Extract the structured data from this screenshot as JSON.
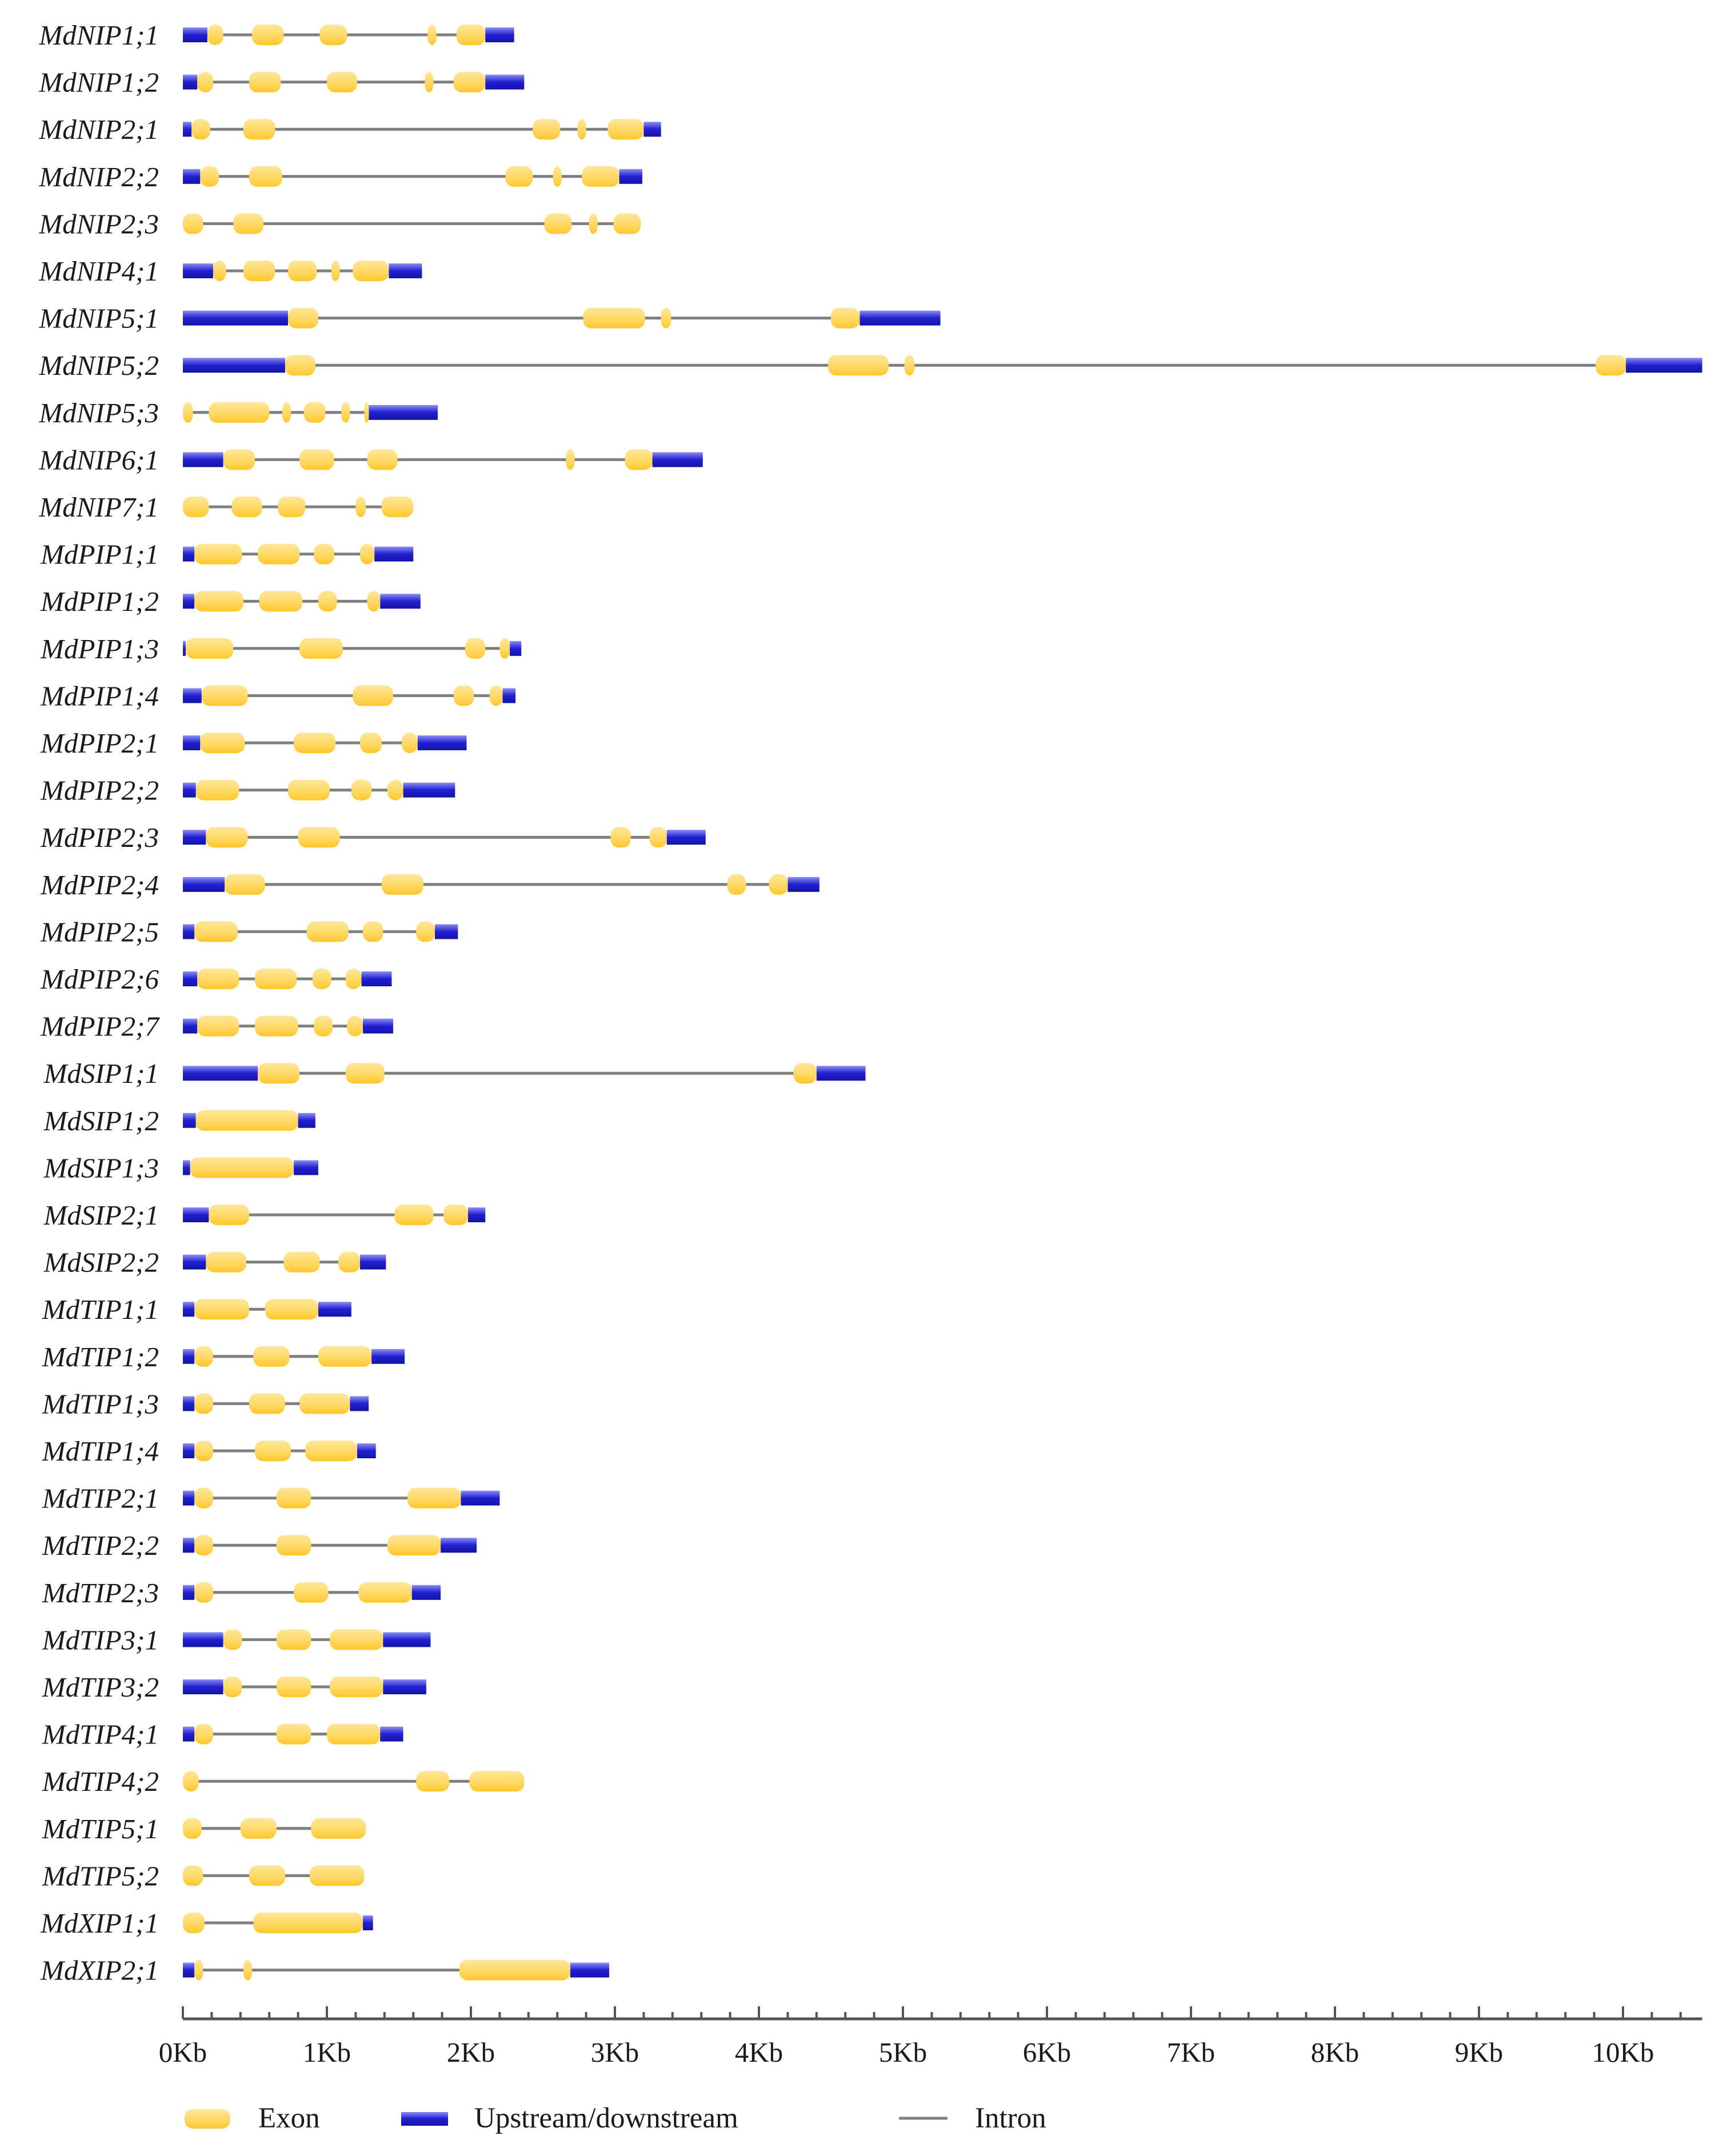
{
  "colors": {
    "exon": "#FFD966",
    "exon_edge": "#FFC000",
    "utr": "#2020D0",
    "utr_light": "#8C8CF5",
    "intron": "#7F7F7F",
    "axis": "#555555"
  },
  "chart_data": {
    "type": "gene_structure",
    "units": "Kb",
    "xlim": [
      0,
      10.55
    ],
    "ticks": [
      {
        "value": 0,
        "label": "0Kb"
      },
      {
        "value": 1,
        "label": "1Kb"
      },
      {
        "value": 2,
        "label": "2Kb"
      },
      {
        "value": 3,
        "label": "3Kb"
      },
      {
        "value": 4,
        "label": "4Kb"
      },
      {
        "value": 5,
        "label": "5Kb"
      },
      {
        "value": 6,
        "label": "6Kb"
      },
      {
        "value": 7,
        "label": "7Kb"
      },
      {
        "value": 8,
        "label": "8Kb"
      },
      {
        "value": 9,
        "label": "9Kb"
      },
      {
        "value": 10,
        "label": "10Kb"
      }
    ],
    "legend": {
      "exon": "Exon",
      "utr": "Upstream/downstream",
      "intron": "Intron"
    },
    "genes": [
      {
        "name": "MdNIP1;1",
        "length": 2.3,
        "utr": [
          [
            0,
            0.17
          ],
          [
            2.1,
            2.3
          ]
        ],
        "exons": [
          [
            0.17,
            0.28
          ],
          [
            0.48,
            0.7
          ],
          [
            0.95,
            1.14
          ],
          [
            1.7,
            1.76
          ],
          [
            1.9,
            2.1
          ]
        ]
      },
      {
        "name": "MdNIP1;2",
        "length": 2.37,
        "utr": [
          [
            0,
            0.1
          ],
          [
            2.1,
            2.37
          ]
        ],
        "exons": [
          [
            0.1,
            0.21
          ],
          [
            0.46,
            0.68
          ],
          [
            1.0,
            1.21
          ],
          [
            1.68,
            1.74
          ],
          [
            1.88,
            2.1
          ]
        ]
      },
      {
        "name": "MdNIP2;1",
        "length": 3.32,
        "utr": [
          [
            0,
            0.06
          ],
          [
            3.2,
            3.32
          ]
        ],
        "exons": [
          [
            0.06,
            0.19
          ],
          [
            0.42,
            0.64
          ],
          [
            2.43,
            2.62
          ],
          [
            2.74,
            2.8
          ],
          [
            2.95,
            3.2
          ]
        ]
      },
      {
        "name": "MdNIP2;2",
        "length": 3.19,
        "utr": [
          [
            0,
            0.12
          ],
          [
            3.03,
            3.19
          ]
        ],
        "exons": [
          [
            0.12,
            0.25
          ],
          [
            0.46,
            0.69
          ],
          [
            2.24,
            2.43
          ],
          [
            2.57,
            2.63
          ],
          [
            2.77,
            3.03
          ]
        ]
      },
      {
        "name": "MdNIP2;3",
        "length": 3.18,
        "utr": [],
        "exons": [
          [
            0,
            0.14
          ],
          [
            0.35,
            0.56
          ],
          [
            2.51,
            2.7
          ],
          [
            2.82,
            2.88
          ],
          [
            2.99,
            3.18
          ]
        ]
      },
      {
        "name": "MdNIP4;1",
        "length": 1.66,
        "utr": [
          [
            0,
            0.21
          ],
          [
            1.43,
            1.66
          ]
        ],
        "exons": [
          [
            0.21,
            0.3
          ],
          [
            0.42,
            0.64
          ],
          [
            0.73,
            0.93
          ],
          [
            1.03,
            1.09
          ],
          [
            1.18,
            1.43
          ]
        ]
      },
      {
        "name": "MdNIP5;1",
        "length": 5.26,
        "utr": [
          [
            0,
            0.73
          ],
          [
            4.7,
            5.26
          ]
        ],
        "exons": [
          [
            0.73,
            0.94
          ],
          [
            2.78,
            3.21
          ],
          [
            3.32,
            3.39
          ],
          [
            4.5,
            4.7
          ]
        ]
      },
      {
        "name": "MdNIP5;2",
        "length": 10.55,
        "utr": [
          [
            0,
            0.71
          ],
          [
            10.02,
            10.55
          ]
        ],
        "exons": [
          [
            0.71,
            0.92
          ],
          [
            4.48,
            4.9
          ],
          [
            5.01,
            5.08
          ],
          [
            9.81,
            10.02
          ]
        ]
      },
      {
        "name": "MdNIP5;3",
        "length": 1.77,
        "utr": [
          [
            1.29,
            1.77
          ]
        ],
        "exons": [
          [
            0,
            0.07
          ],
          [
            0.18,
            0.6
          ],
          [
            0.69,
            0.75
          ],
          [
            0.84,
            0.99
          ],
          [
            1.1,
            1.16
          ],
          [
            1.26,
            1.29
          ]
        ]
      },
      {
        "name": "MdNIP6;1",
        "length": 3.61,
        "utr": [
          [
            0,
            0.28
          ],
          [
            3.26,
            3.61
          ]
        ],
        "exons": [
          [
            0.28,
            0.5
          ],
          [
            0.81,
            1.05
          ],
          [
            1.28,
            1.49
          ],
          [
            2.66,
            2.72
          ],
          [
            3.07,
            3.26
          ]
        ]
      },
      {
        "name": "MdNIP7;1",
        "length": 1.6,
        "utr": [],
        "exons": [
          [
            0,
            0.18
          ],
          [
            0.34,
            0.55
          ],
          [
            0.66,
            0.85
          ],
          [
            1.2,
            1.27
          ],
          [
            1.38,
            1.6
          ]
        ]
      },
      {
        "name": "MdPIP1;1",
        "length": 1.6,
        "utr": [
          [
            0,
            0.08
          ],
          [
            1.33,
            1.6
          ]
        ],
        "exons": [
          [
            0.08,
            0.41
          ],
          [
            0.52,
            0.81
          ],
          [
            0.91,
            1.05
          ],
          [
            1.23,
            1.33
          ]
        ]
      },
      {
        "name": "MdPIP1;2",
        "length": 1.65,
        "utr": [
          [
            0,
            0.08
          ],
          [
            1.37,
            1.65
          ]
        ],
        "exons": [
          [
            0.08,
            0.42
          ],
          [
            0.53,
            0.83
          ],
          [
            0.94,
            1.07
          ],
          [
            1.28,
            1.37
          ]
        ]
      },
      {
        "name": "MdPIP1;3",
        "length": 2.35,
        "utr": [
          [
            0,
            0.02
          ],
          [
            2.27,
            2.35
          ]
        ],
        "exons": [
          [
            0.02,
            0.35
          ],
          [
            0.81,
            1.11
          ],
          [
            1.96,
            2.1
          ],
          [
            2.2,
            2.27
          ]
        ]
      },
      {
        "name": "MdPIP1;4",
        "length": 2.31,
        "utr": [
          [
            0,
            0.13
          ],
          [
            2.22,
            2.31
          ]
        ],
        "exons": [
          [
            0.13,
            0.45
          ],
          [
            1.18,
            1.46
          ],
          [
            1.88,
            2.02
          ],
          [
            2.13,
            2.22
          ]
        ]
      },
      {
        "name": "MdPIP2;1",
        "length": 1.97,
        "utr": [
          [
            0,
            0.12
          ],
          [
            1.63,
            1.97
          ]
        ],
        "exons": [
          [
            0.12,
            0.43
          ],
          [
            0.77,
            1.06
          ],
          [
            1.23,
            1.38
          ],
          [
            1.52,
            1.63
          ]
        ]
      },
      {
        "name": "MdPIP2;2",
        "length": 1.89,
        "utr": [
          [
            0,
            0.09
          ],
          [
            1.53,
            1.89
          ]
        ],
        "exons": [
          [
            0.09,
            0.39
          ],
          [
            0.73,
            1.02
          ],
          [
            1.17,
            1.31
          ],
          [
            1.42,
            1.53
          ]
        ]
      },
      {
        "name": "MdPIP2;3",
        "length": 3.63,
        "utr": [
          [
            0,
            0.16
          ],
          [
            3.36,
            3.63
          ]
        ],
        "exons": [
          [
            0.16,
            0.45
          ],
          [
            0.8,
            1.09
          ],
          [
            2.97,
            3.11
          ],
          [
            3.24,
            3.36
          ]
        ]
      },
      {
        "name": "MdPIP2;4",
        "length": 4.42,
        "utr": [
          [
            0,
            0.29
          ],
          [
            4.2,
            4.42
          ]
        ],
        "exons": [
          [
            0.29,
            0.57
          ],
          [
            1.38,
            1.67
          ],
          [
            3.78,
            3.91
          ],
          [
            4.07,
            4.2
          ]
        ]
      },
      {
        "name": "MdPIP2;5",
        "length": 1.91,
        "utr": [
          [
            0,
            0.08
          ],
          [
            1.75,
            1.91
          ]
        ],
        "exons": [
          [
            0.08,
            0.38
          ],
          [
            0.86,
            1.15
          ],
          [
            1.25,
            1.39
          ],
          [
            1.62,
            1.75
          ]
        ]
      },
      {
        "name": "MdPIP2;6",
        "length": 1.45,
        "utr": [
          [
            0,
            0.1
          ],
          [
            1.24,
            1.45
          ]
        ],
        "exons": [
          [
            0.1,
            0.39
          ],
          [
            0.5,
            0.79
          ],
          [
            0.9,
            1.03
          ],
          [
            1.13,
            1.24
          ]
        ]
      },
      {
        "name": "MdPIP2;7",
        "length": 1.46,
        "utr": [
          [
            0,
            0.1
          ],
          [
            1.25,
            1.46
          ]
        ],
        "exons": [
          [
            0.1,
            0.39
          ],
          [
            0.5,
            0.8
          ],
          [
            0.91,
            1.04
          ],
          [
            1.14,
            1.25
          ]
        ]
      },
      {
        "name": "MdSIP1;1",
        "length": 4.74,
        "utr": [
          [
            0,
            0.52
          ],
          [
            4.4,
            4.74
          ]
        ],
        "exons": [
          [
            0.52,
            0.81
          ],
          [
            1.13,
            1.4
          ],
          [
            4.24,
            4.4
          ]
        ]
      },
      {
        "name": "MdSIP1;2",
        "length": 0.92,
        "utr": [
          [
            0,
            0.09
          ],
          [
            0.8,
            0.92
          ]
        ],
        "exons": [
          [
            0.09,
            0.8
          ]
        ]
      },
      {
        "name": "MdSIP1;3",
        "length": 0.94,
        "utr": [
          [
            0,
            0.05
          ],
          [
            0.77,
            0.94
          ]
        ],
        "exons": [
          [
            0.05,
            0.77
          ]
        ]
      },
      {
        "name": "MdSIP2;1",
        "length": 2.1,
        "utr": [
          [
            0,
            0.18
          ],
          [
            1.98,
            2.1
          ]
        ],
        "exons": [
          [
            0.18,
            0.46
          ],
          [
            1.47,
            1.74
          ],
          [
            1.81,
            1.98
          ]
        ]
      },
      {
        "name": "MdSIP2;2",
        "length": 1.41,
        "utr": [
          [
            0,
            0.16
          ],
          [
            1.23,
            1.41
          ]
        ],
        "exons": [
          [
            0.16,
            0.44
          ],
          [
            0.7,
            0.95
          ],
          [
            1.08,
            1.23
          ]
        ]
      },
      {
        "name": "MdTIP1;1",
        "length": 1.17,
        "utr": [
          [
            0,
            0.08
          ],
          [
            0.94,
            1.17
          ]
        ],
        "exons": [
          [
            0.08,
            0.46
          ],
          [
            0.57,
            0.94
          ]
        ]
      },
      {
        "name": "MdTIP1;2",
        "length": 1.54,
        "utr": [
          [
            0,
            0.08
          ],
          [
            1.31,
            1.54
          ]
        ],
        "exons": [
          [
            0.08,
            0.21
          ],
          [
            0.49,
            0.74
          ],
          [
            0.94,
            1.31
          ]
        ]
      },
      {
        "name": "MdTIP1;3",
        "length": 1.29,
        "utr": [
          [
            0,
            0.08
          ],
          [
            1.16,
            1.29
          ]
        ],
        "exons": [
          [
            0.08,
            0.21
          ],
          [
            0.46,
            0.71
          ],
          [
            0.81,
            1.16
          ]
        ]
      },
      {
        "name": "MdTIP1;4",
        "length": 1.34,
        "utr": [
          [
            0,
            0.08
          ],
          [
            1.21,
            1.34
          ]
        ],
        "exons": [
          [
            0.08,
            0.21
          ],
          [
            0.5,
            0.75
          ],
          [
            0.85,
            1.21
          ]
        ]
      },
      {
        "name": "MdTIP2;1",
        "length": 2.2,
        "utr": [
          [
            0,
            0.08
          ],
          [
            1.93,
            2.2
          ]
        ],
        "exons": [
          [
            0.08,
            0.21
          ],
          [
            0.65,
            0.89
          ],
          [
            1.56,
            1.93
          ]
        ]
      },
      {
        "name": "MdTIP2;2",
        "length": 2.04,
        "utr": [
          [
            0,
            0.08
          ],
          [
            1.79,
            2.04
          ]
        ],
        "exons": [
          [
            0.08,
            0.21
          ],
          [
            0.65,
            0.89
          ],
          [
            1.42,
            1.79
          ]
        ]
      },
      {
        "name": "MdTIP2;3",
        "length": 1.79,
        "utr": [
          [
            0,
            0.08
          ],
          [
            1.59,
            1.79
          ]
        ],
        "exons": [
          [
            0.08,
            0.21
          ],
          [
            0.77,
            1.01
          ],
          [
            1.22,
            1.59
          ]
        ]
      },
      {
        "name": "MdTIP3;1",
        "length": 1.72,
        "utr": [
          [
            0,
            0.28
          ],
          [
            1.39,
            1.72
          ]
        ],
        "exons": [
          [
            0.28,
            0.41
          ],
          [
            0.65,
            0.89
          ],
          [
            1.02,
            1.39
          ]
        ]
      },
      {
        "name": "MdTIP3;2",
        "length": 1.69,
        "utr": [
          [
            0,
            0.28
          ],
          [
            1.39,
            1.69
          ]
        ],
        "exons": [
          [
            0.28,
            0.41
          ],
          [
            0.65,
            0.89
          ],
          [
            1.02,
            1.39
          ]
        ]
      },
      {
        "name": "MdTIP4;1",
        "length": 1.53,
        "utr": [
          [
            0,
            0.08
          ],
          [
            1.37,
            1.53
          ]
        ],
        "exons": [
          [
            0.08,
            0.21
          ],
          [
            0.65,
            0.89
          ],
          [
            1.0,
            1.37
          ]
        ]
      },
      {
        "name": "MdTIP4;2",
        "length": 2.37,
        "utr": [],
        "exons": [
          [
            0,
            0.11
          ],
          [
            1.62,
            1.85
          ],
          [
            1.99,
            2.37
          ]
        ]
      },
      {
        "name": "MdTIP5;1",
        "length": 1.27,
        "utr": [],
        "exons": [
          [
            0,
            0.13
          ],
          [
            0.4,
            0.65
          ],
          [
            0.89,
            1.27
          ]
        ]
      },
      {
        "name": "MdTIP5;2",
        "length": 1.26,
        "utr": [],
        "exons": [
          [
            0,
            0.14
          ],
          [
            0.46,
            0.71
          ],
          [
            0.88,
            1.26
          ]
        ]
      },
      {
        "name": "MdXIP1;1",
        "length": 1.32,
        "utr": [
          [
            1.25,
            1.32
          ]
        ],
        "exons": [
          [
            0,
            0.15
          ],
          [
            0.49,
            1.25
          ]
        ]
      },
      {
        "name": "MdXIP2;1",
        "length": 2.96,
        "utr": [
          [
            0,
            0.08
          ],
          [
            2.69,
            2.96
          ]
        ],
        "exons": [
          [
            0.08,
            0.14
          ],
          [
            0.42,
            0.48
          ],
          [
            1.92,
            2.69
          ]
        ]
      }
    ]
  }
}
